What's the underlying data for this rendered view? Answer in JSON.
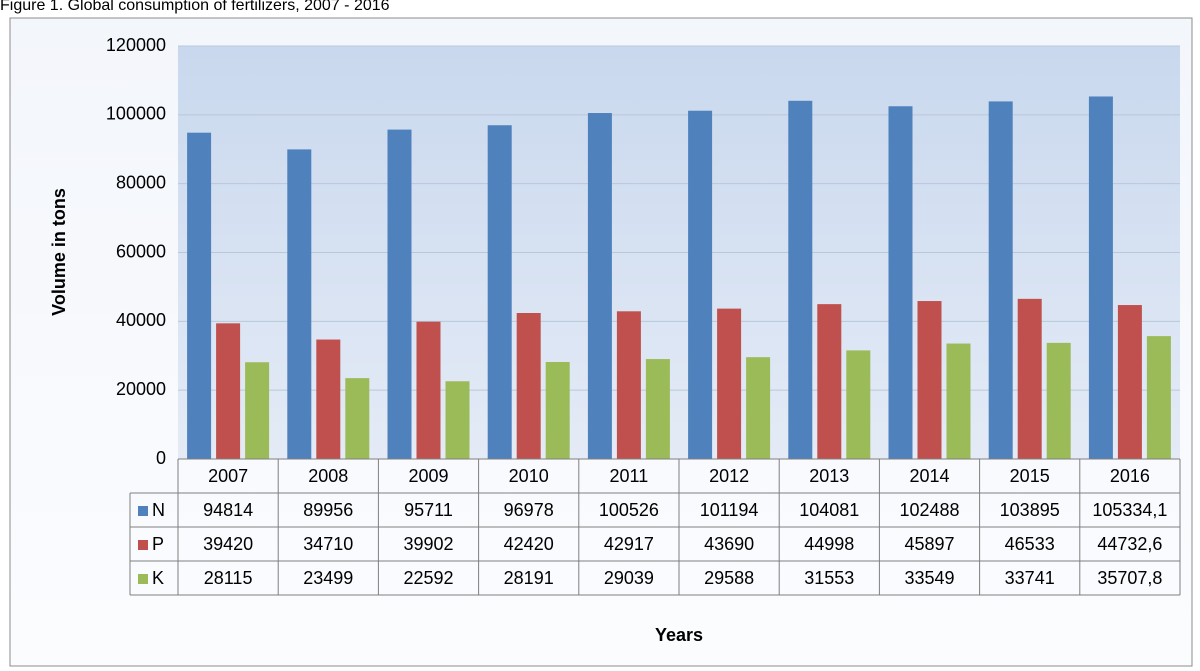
{
  "chart_data": {
    "type": "bar",
    "title": "Figure 1. Global consumption of fertilizers, 2007 - 2016",
    "y_label": "Volume in tons",
    "x_label": "Years",
    "categories": [
      "2007",
      "2008",
      "2009",
      "2010",
      "2011",
      "2012",
      "2013",
      "2014",
      "2015",
      "2016"
    ],
    "series": [
      {
        "name": "N",
        "color": "#4f81bd",
        "values": [
          94814,
          89956,
          95711,
          96978,
          100526,
          101194,
          104081,
          102488,
          103895,
          105334.1
        ],
        "value_labels": [
          "94814",
          "89956",
          "95711",
          "96978",
          "100526",
          "101194",
          "104081",
          "102488",
          "103895",
          "105334,1"
        ]
      },
      {
        "name": "P",
        "color": "#c0504d",
        "values": [
          39420,
          34710,
          39902,
          42420,
          42917,
          43690,
          44998,
          45897,
          46533,
          44732.6
        ],
        "value_labels": [
          "39420",
          "34710",
          "39902",
          "42420",
          "42917",
          "43690",
          "44998",
          "45897",
          "46533",
          "44732,6"
        ]
      },
      {
        "name": "K",
        "color": "#9bbb59",
        "values": [
          28115,
          23499,
          22592,
          28191,
          29039,
          29588,
          31553,
          33549,
          33741,
          35707.8
        ],
        "value_labels": [
          "28115",
          "23499",
          "22592",
          "28191",
          "29039",
          "29588",
          "31553",
          "33549",
          "33741",
          "35707,8"
        ]
      }
    ],
    "ylim": [
      0,
      120000
    ],
    "yticks": [
      0,
      20000,
      40000,
      60000,
      80000,
      100000,
      120000
    ],
    "grid": true,
    "legend": "table"
  }
}
